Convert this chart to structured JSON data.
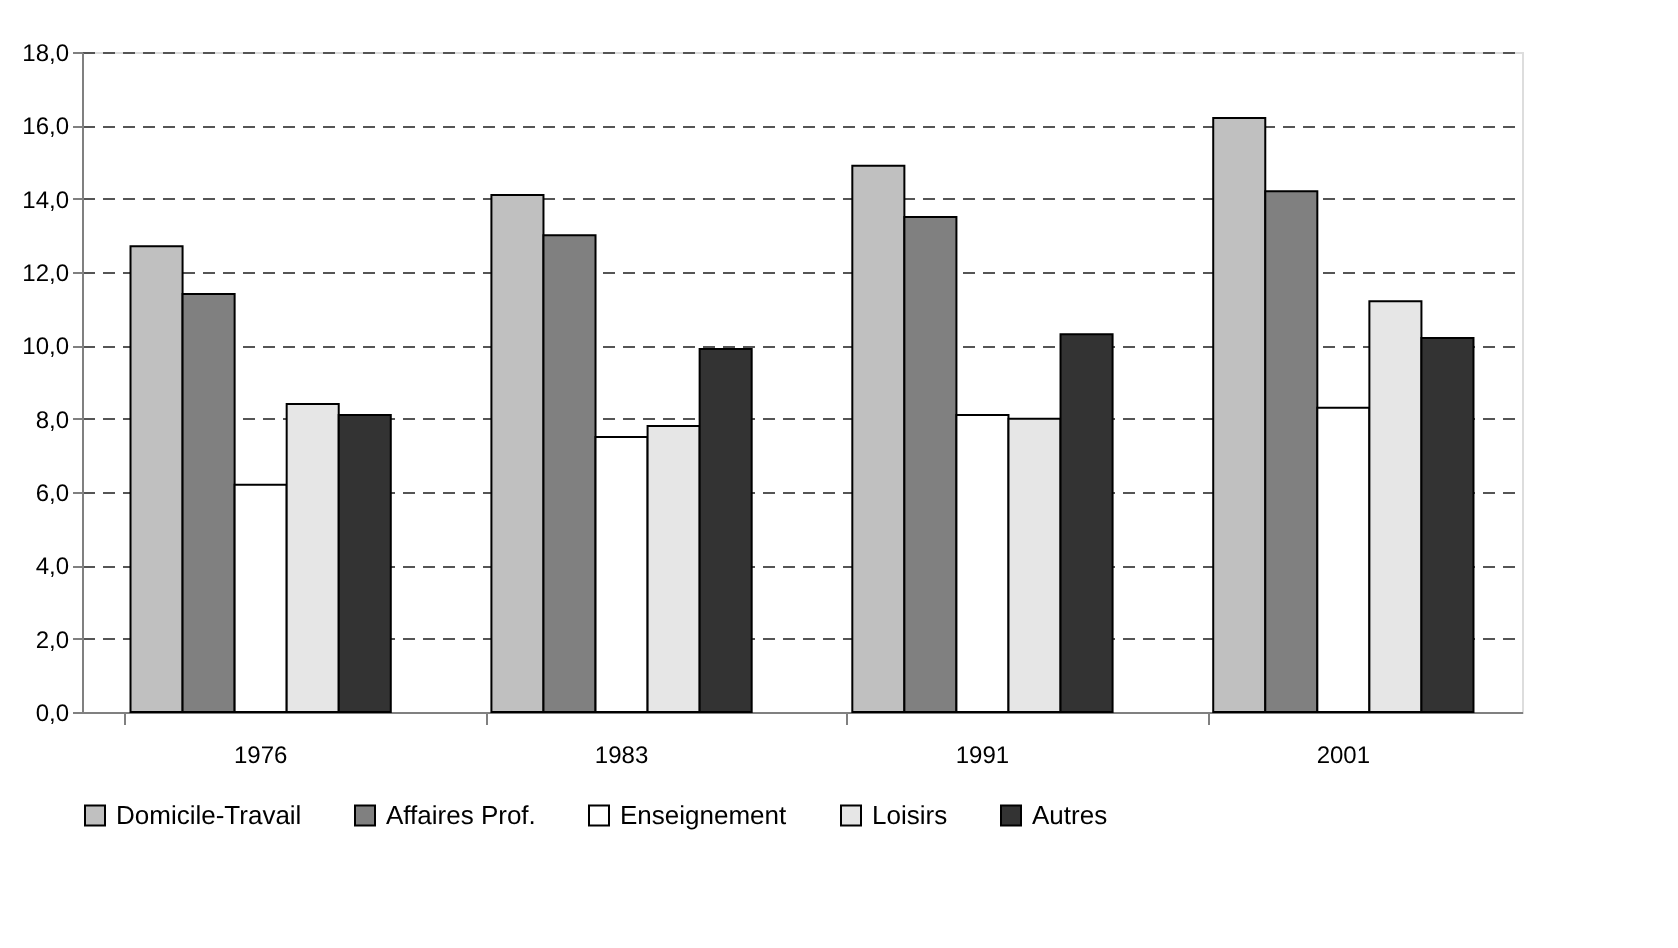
{
  "chart_data": {
    "type": "bar",
    "categories": [
      "1976",
      "1983",
      "1991",
      "2001"
    ],
    "series": [
      {
        "name": "Domicile-Travail",
        "color": "#c0c0c0",
        "values": [
          12.7,
          14.1,
          14.9,
          16.2
        ]
      },
      {
        "name": "Affaires Prof.",
        "color": "#808080",
        "values": [
          11.4,
          13.0,
          13.5,
          14.2
        ]
      },
      {
        "name": "Enseignement",
        "color": "#ffffff",
        "values": [
          6.2,
          7.5,
          8.1,
          8.3
        ]
      },
      {
        "name": "Loisirs",
        "color": "#e6e6e6",
        "values": [
          8.4,
          7.8,
          8.0,
          11.2
        ]
      },
      {
        "name": "Autres",
        "color": "#333333",
        "values": [
          8.1,
          9.9,
          10.3,
          10.2
        ]
      }
    ],
    "ylim": [
      0,
      18
    ],
    "yticks": [
      {
        "value": 0,
        "label": "0,0"
      },
      {
        "value": 2,
        "label": "2,0"
      },
      {
        "value": 4,
        "label": "4,0"
      },
      {
        "value": 6,
        "label": "6,0"
      },
      {
        "value": 8,
        "label": "8,0"
      },
      {
        "value": 10,
        "label": "10,0"
      },
      {
        "value": 12,
        "label": "12,0"
      },
      {
        "value": 14,
        "label": "14,0"
      },
      {
        "value": 16,
        "label": "16,0"
      },
      {
        "value": 18,
        "label": "18,0"
      }
    ],
    "grid": "y",
    "legend": "bottom"
  }
}
